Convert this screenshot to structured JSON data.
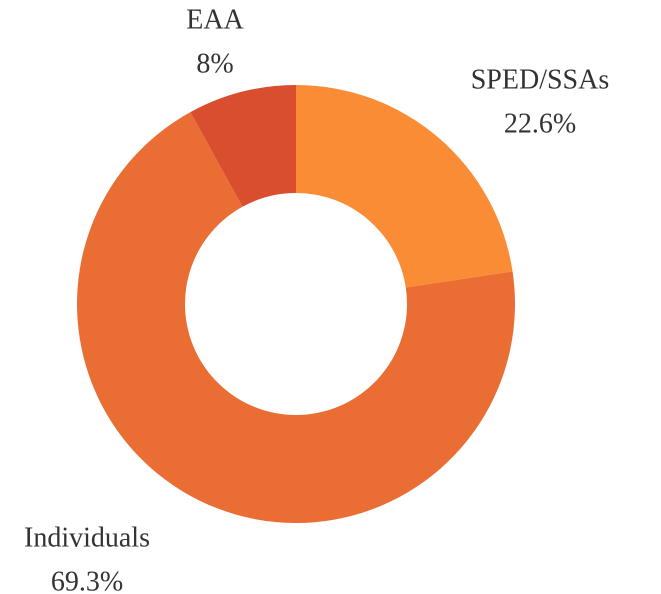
{
  "chart_data": {
    "type": "donut",
    "categories": [
      "SPED/SSAs",
      "Individuals",
      "EAA"
    ],
    "values": [
      22.6,
      69.3,
      8
    ],
    "value_labels": [
      "22.6%",
      "69.3%",
      "8%"
    ],
    "colors": [
      "#fb8c36",
      "#ea6d34",
      "#d94e2e"
    ]
  }
}
